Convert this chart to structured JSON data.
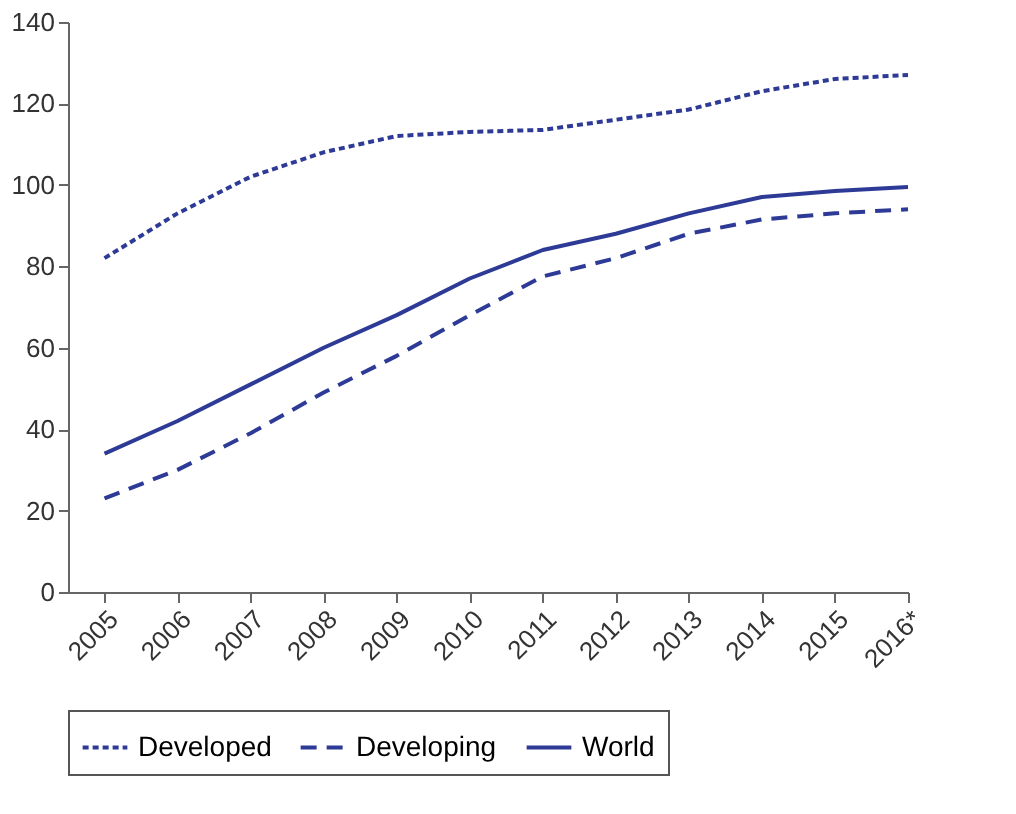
{
  "chart_data": {
    "type": "line",
    "categories": [
      "2005",
      "2006",
      "2007",
      "2008",
      "2009",
      "2010",
      "2011",
      "2012",
      "2013",
      "2014",
      "2015",
      "2016*"
    ],
    "ylim": [
      0,
      140
    ],
    "yticks": [
      0,
      20,
      40,
      60,
      80,
      100,
      120,
      140
    ],
    "legend": "bottom",
    "grid": false,
    "marker": "none",
    "series": [
      {
        "name": "Developed",
        "color": "#2e3b96",
        "line_style": "dotted",
        "values": [
          82,
          93,
          102,
          108,
          112,
          113,
          113.5,
          116,
          118.5,
          123,
          126,
          127
        ]
      },
      {
        "name": "Developing",
        "color": "#2e3b96",
        "line_style": "dashed",
        "values": [
          23,
          30,
          39,
          49,
          58,
          68,
          77.5,
          82,
          88,
          91.5,
          93,
          94
        ]
      },
      {
        "name": "World",
        "color": "#2e3b96",
        "line_style": "solid",
        "values": [
          34,
          42,
          51,
          60,
          68,
          77,
          84,
          88,
          93,
          97,
          98.5,
          99.5
        ]
      }
    ]
  }
}
